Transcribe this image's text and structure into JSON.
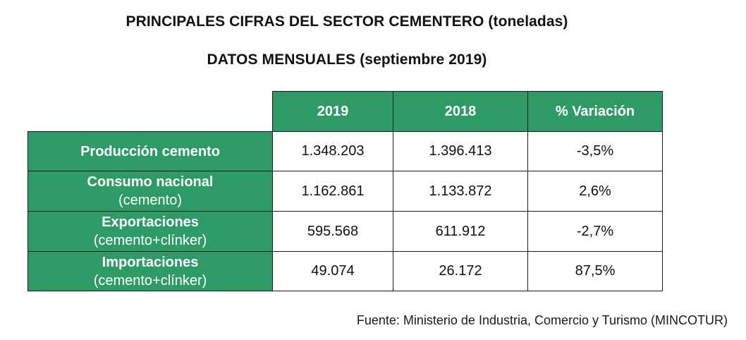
{
  "title": "PRINCIPALES CIFRAS DEL SECTOR CEMENTERO (toneladas)",
  "subtitle": "DATOS MENSUALES (septiembre 2019)",
  "table": {
    "columns": [
      "2019",
      "2018",
      "% Variación"
    ],
    "rows": [
      {
        "name": "Producción cemento",
        "sub": "",
        "values": [
          "1.348.203",
          "1.396.413",
          "-3,5%"
        ]
      },
      {
        "name": "Consumo nacional",
        "sub": "(cemento)",
        "values": [
          "1.162.861",
          "1.133.872",
          "2,6%"
        ]
      },
      {
        "name": "Exportaciones",
        "sub": "(cemento+clínker)",
        "values": [
          "595.568",
          "611.912",
          "-2,7%"
        ]
      },
      {
        "name": "Importaciones",
        "sub": "(cemento+clínker)",
        "values": [
          "49.074",
          "26.172",
          "87,5%"
        ]
      }
    ]
  },
  "source": "Fuente: Ministerio de Industria, Comercio y Turismo (MINCOTUR)",
  "colors": {
    "header_green": "#2e9b67",
    "header_text": "#ffffff",
    "border": "#1a1a1a"
  }
}
